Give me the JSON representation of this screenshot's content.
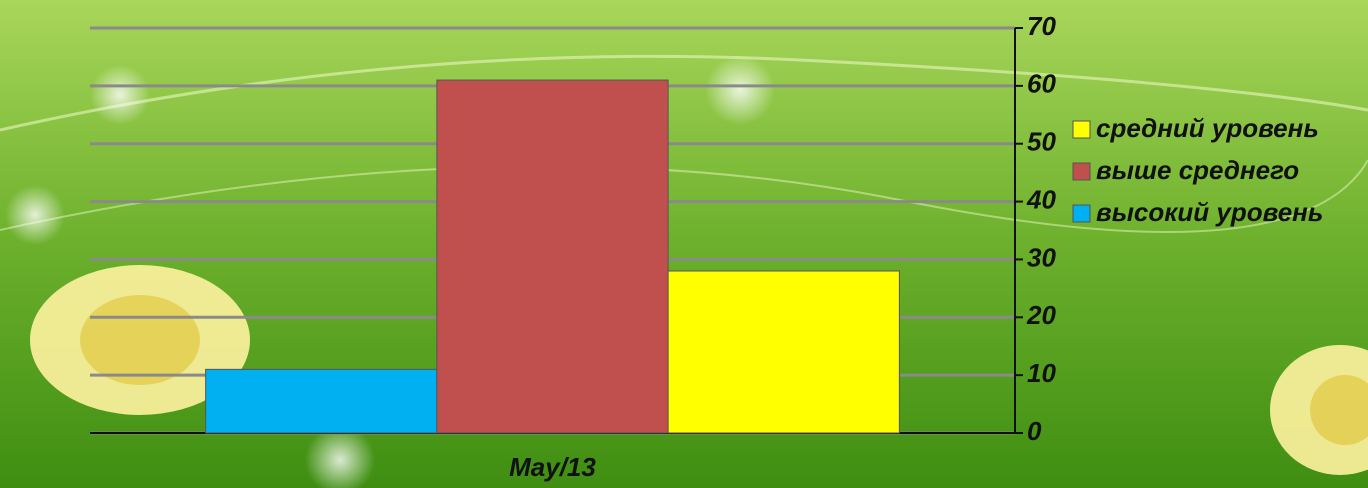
{
  "chart_data": {
    "type": "bar",
    "categories": [
      "May/13"
    ],
    "series": [
      {
        "name": "высокий уровень",
        "color": "#00b0f0",
        "values": [
          11
        ]
      },
      {
        "name": "выше среднего",
        "color": "#c0504d",
        "values": [
          61
        ]
      },
      {
        "name": "средний уровень",
        "color": "#ffff00",
        "values": [
          28
        ]
      }
    ],
    "ylim": [
      0,
      70
    ],
    "yticks": [
      0,
      10,
      20,
      30,
      40,
      50,
      60,
      70
    ],
    "grid": true,
    "legend": "right"
  }
}
